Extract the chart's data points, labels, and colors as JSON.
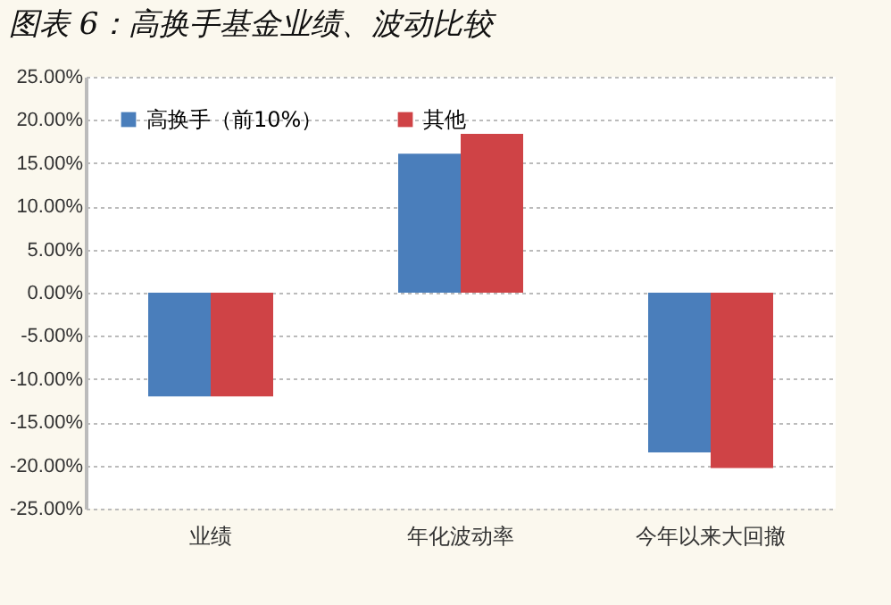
{
  "chart_data": {
    "type": "bar",
    "title": "图表 6：高换手基金业绩、波动比较",
    "categories": [
      "业绩",
      "年化波动率",
      "今年以来大回撤"
    ],
    "series": [
      {
        "name": "高换手（前10%）",
        "color": "#4a7ebb",
        "values": [
          -12,
          16.1,
          -18.5
        ]
      },
      {
        "name": "其他",
        "color": "#cf4346",
        "values": [
          -12,
          18.4,
          -20.3
        ]
      }
    ],
    "ylim": [
      -25,
      25
    ],
    "yticks": [
      {
        "value": -25,
        "label": "-25.00%"
      },
      {
        "value": -20,
        "label": "-20.00%"
      },
      {
        "value": -15,
        "label": "-15.00%"
      },
      {
        "value": -10,
        "label": "-10.00%"
      },
      {
        "value": -5,
        "label": "-5.00%"
      },
      {
        "value": 0,
        "label": "0.00%"
      },
      {
        "value": 5,
        "label": "5.00%"
      },
      {
        "value": 10,
        "label": "10.00%"
      },
      {
        "value": 15,
        "label": "15.00%"
      },
      {
        "value": 20,
        "label": "20.00%"
      },
      {
        "value": 25,
        "label": "25.00%"
      }
    ],
    "grid": "y",
    "legend": "top left"
  }
}
